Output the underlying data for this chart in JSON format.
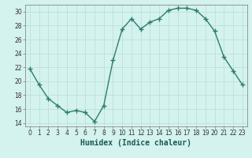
{
  "x": [
    0,
    1,
    2,
    3,
    4,
    5,
    6,
    7,
    8,
    9,
    10,
    11,
    12,
    13,
    14,
    15,
    16,
    17,
    18,
    19,
    20,
    21,
    22,
    23
  ],
  "y": [
    21.8,
    19.5,
    17.5,
    16.5,
    15.5,
    15.8,
    15.5,
    14.2,
    16.5,
    23.0,
    27.5,
    29.0,
    27.5,
    28.5,
    29.0,
    30.2,
    30.5,
    30.5,
    30.2,
    29.0,
    27.2,
    23.5,
    21.5,
    19.5
  ],
  "line_color": "#2d7d6e",
  "marker": "+",
  "markersize": 4,
  "linewidth": 1.0,
  "background_color": "#d4f2ee",
  "grid_color": "#b8ddd9",
  "xlabel": "Humidex (Indice chaleur)",
  "xlim": [
    -0.5,
    23.5
  ],
  "ylim": [
    13.5,
    31
  ],
  "yticks": [
    14,
    16,
    18,
    20,
    22,
    24,
    26,
    28,
    30
  ],
  "xticks": [
    0,
    1,
    2,
    3,
    4,
    5,
    6,
    7,
    8,
    9,
    10,
    11,
    12,
    13,
    14,
    15,
    16,
    17,
    18,
    19,
    20,
    21,
    22,
    23
  ],
  "tick_label_fontsize": 5.5,
  "xlabel_fontsize": 7.0,
  "tick_color": "#2d7d6e",
  "spine_color": "#777777"
}
